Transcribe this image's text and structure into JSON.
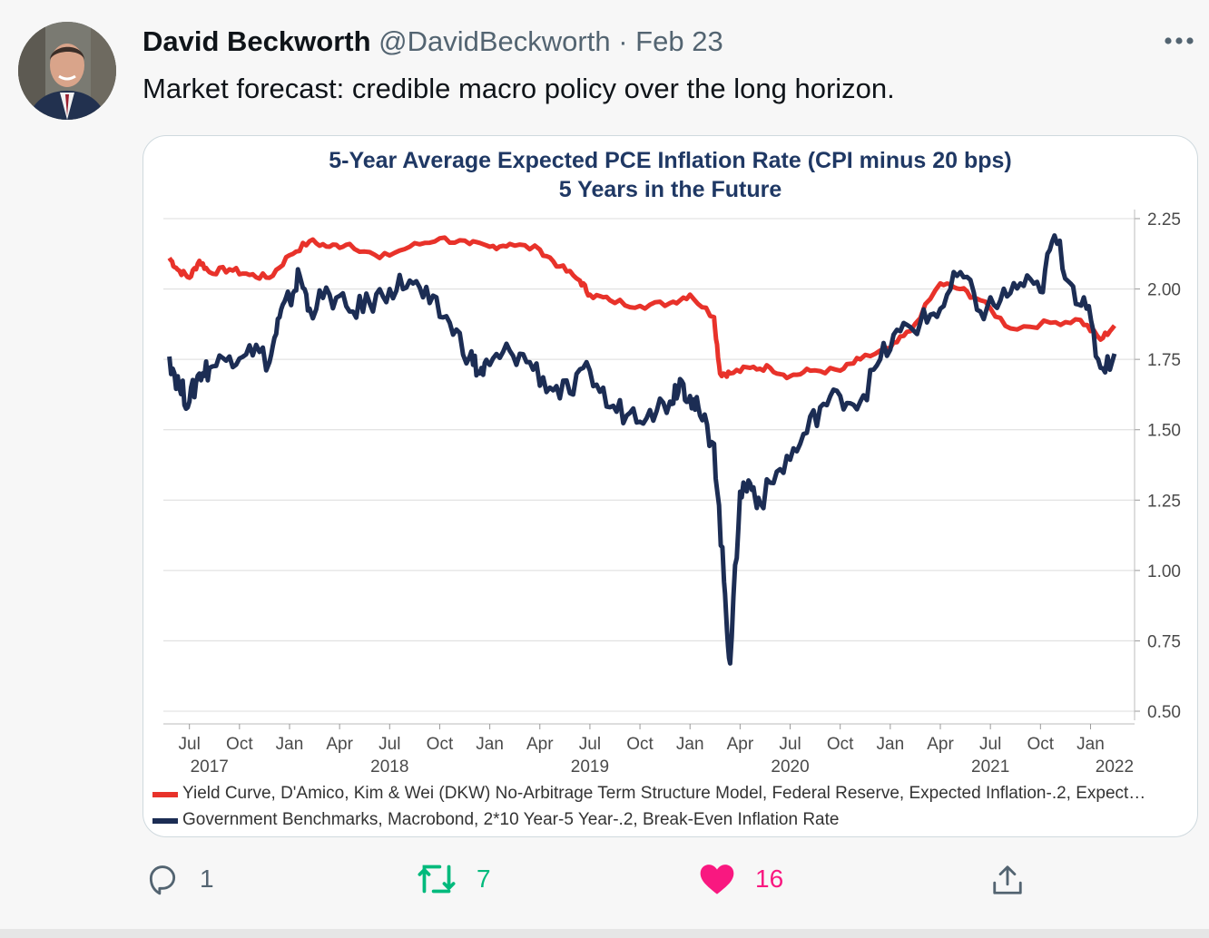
{
  "tweet": {
    "author_name": "David Beckworth",
    "handle": "@DavidBeckworth",
    "separator": "·",
    "date": "Feb 23",
    "text": "Market forecast: credible macro policy over the long horizon."
  },
  "actions": {
    "replies": "1",
    "retweets": "7",
    "likes": "16"
  },
  "colors": {
    "accent_retweet": "#00ba7c",
    "accent_like": "#f91880",
    "muted": "#536471",
    "series_red": "#e8322a",
    "series_navy": "#1c2d54",
    "title_blue": "#1f3864"
  },
  "chart_data": {
    "type": "line",
    "title_line1": "5-Year Average Expected PCE Inflation Rate (CPI minus 20 bps)",
    "title_line2": "5 Years in the Future",
    "ylim": [
      0.5,
      2.25
    ],
    "yticks": [
      "2.25",
      "2.00",
      "1.75",
      "1.50",
      "1.25",
      "1.00",
      "0.75",
      "0.50"
    ],
    "xlim": [
      2017.37,
      2022.22
    ],
    "x_month_labels": [
      {
        "label": "Jul",
        "x": 2017.5
      },
      {
        "label": "Oct",
        "x": 2017.75
      },
      {
        "label": "Jan",
        "x": 2018.0
      },
      {
        "label": "Apr",
        "x": 2018.25
      },
      {
        "label": "Jul",
        "x": 2018.5
      },
      {
        "label": "Oct",
        "x": 2018.75
      },
      {
        "label": "Jan",
        "x": 2019.0
      },
      {
        "label": "Apr",
        "x": 2019.25
      },
      {
        "label": "Jul",
        "x": 2019.5
      },
      {
        "label": "Oct",
        "x": 2019.75
      },
      {
        "label": "Jan",
        "x": 2020.0
      },
      {
        "label": "Apr",
        "x": 2020.25
      },
      {
        "label": "Jul",
        "x": 2020.5
      },
      {
        "label": "Oct",
        "x": 2020.75
      },
      {
        "label": "Jan",
        "x": 2021.0
      },
      {
        "label": "Apr",
        "x": 2021.25
      },
      {
        "label": "Jul",
        "x": 2021.5
      },
      {
        "label": "Oct",
        "x": 2021.75
      },
      {
        "label": "Jan",
        "x": 2022.0
      }
    ],
    "x_year_labels": [
      {
        "label": "2017",
        "x": 2017.6
      },
      {
        "label": "2018",
        "x": 2018.5
      },
      {
        "label": "2019",
        "x": 2019.5
      },
      {
        "label": "2020",
        "x": 2020.5
      },
      {
        "label": "2021",
        "x": 2021.5
      },
      {
        "label": "2022",
        "x": 2022.12
      }
    ],
    "series": [
      {
        "name": "Yield Curve, D'Amico, Kim & Wei (DKW) No-Arbitrage Term Structure Model, Federal Reserve, Expected Inflation-.2, Expect…",
        "color": "#e8322a",
        "x": [
          2017.4,
          2017.44,
          2017.5,
          2017.55,
          2017.6,
          2017.7,
          2017.8,
          2017.9,
          2018.0,
          2018.1,
          2018.2,
          2018.3,
          2018.45,
          2018.6,
          2018.75,
          2018.9,
          2019.0,
          2019.1,
          2019.25,
          2019.35,
          2019.45,
          2019.5,
          2019.6,
          2019.75,
          2019.9,
          2020.0,
          2020.12,
          2020.15,
          2020.2,
          2020.3,
          2020.4,
          2020.5,
          2020.6,
          2020.75,
          2020.85,
          2021.0,
          2021.1,
          2021.25,
          2021.35,
          2021.45,
          2021.6,
          2021.8,
          2021.95,
          2022.05,
          2022.12
        ],
        "values": [
          2.11,
          2.07,
          2.04,
          2.1,
          2.06,
          2.07,
          2.05,
          2.04,
          2.12,
          2.17,
          2.15,
          2.16,
          2.11,
          2.15,
          2.18,
          2.16,
          2.15,
          2.16,
          2.14,
          2.08,
          2.03,
          1.98,
          1.96,
          1.94,
          1.95,
          1.98,
          1.9,
          1.7,
          1.7,
          1.72,
          1.72,
          1.69,
          1.71,
          1.71,
          1.75,
          1.79,
          1.85,
          2.02,
          2.0,
          1.96,
          1.86,
          1.88,
          1.89,
          1.82,
          1.87
        ]
      },
      {
        "name": "Government Benchmarks, Macrobond, 2*10 Year-5 Year-.2, Break-Even Inflation Rate",
        "color": "#1c2d54",
        "x": [
          2017.4,
          2017.45,
          2017.5,
          2017.55,
          2017.6,
          2017.7,
          2017.8,
          2017.9,
          2017.95,
          2018.0,
          2018.05,
          2018.1,
          2018.2,
          2018.3,
          2018.4,
          2018.5,
          2018.6,
          2018.7,
          2018.8,
          2018.9,
          2018.95,
          2019.0,
          2019.1,
          2019.2,
          2019.3,
          2019.4,
          2019.5,
          2019.6,
          2019.7,
          2019.8,
          2019.9,
          2019.95,
          2020.0,
          2020.05,
          2020.12,
          2020.17,
          2020.2,
          2020.25,
          2020.3,
          2020.35,
          2020.45,
          2020.55,
          2020.65,
          2020.75,
          2020.85,
          2020.95,
          2021.05,
          2021.15,
          2021.25,
          2021.35,
          2021.45,
          2021.55,
          2021.65,
          2021.75,
          2021.82,
          2021.9,
          2021.98,
          2022.05,
          2022.12
        ],
        "values": [
          1.76,
          1.65,
          1.6,
          1.7,
          1.72,
          1.76,
          1.8,
          1.74,
          1.9,
          1.96,
          2.05,
          1.93,
          1.98,
          1.92,
          1.95,
          2.0,
          2.03,
          1.95,
          1.88,
          1.76,
          1.7,
          1.73,
          1.78,
          1.74,
          1.65,
          1.63,
          1.71,
          1.58,
          1.56,
          1.57,
          1.6,
          1.68,
          1.62,
          1.55,
          1.45,
          0.96,
          0.67,
          1.28,
          1.31,
          1.24,
          1.36,
          1.45,
          1.58,
          1.62,
          1.6,
          1.75,
          1.85,
          1.88,
          1.93,
          2.06,
          1.92,
          1.96,
          2.02,
          1.99,
          2.19,
          2.02,
          1.93,
          1.72,
          1.77
        ]
      }
    ],
    "legend_position": "bottom"
  }
}
